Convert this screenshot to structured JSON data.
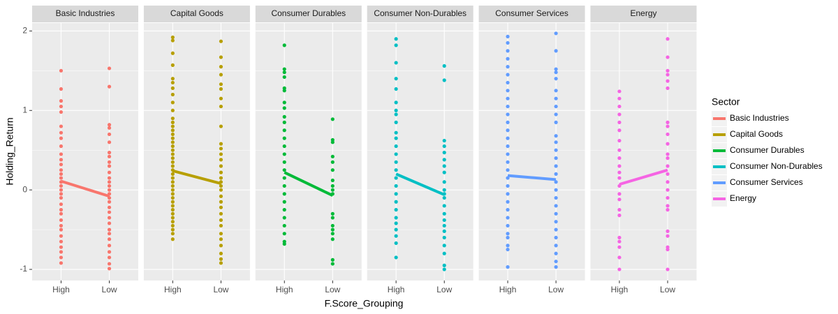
{
  "chart_data": {
    "type": "faceted_dot_line",
    "x_label": "F.Score_Grouping",
    "y_label": "Holding_Return",
    "legend_title": "Sector",
    "categories": [
      "High",
      "Low"
    ],
    "ylim": [
      -1.14,
      2.1
    ],
    "yticks": [
      -1,
      0,
      1,
      2
    ],
    "grid": true,
    "series": [
      {
        "name": "Basic Industries",
        "color": "#F8766D",
        "values": [
          0.11,
          -0.08
        ],
        "points": [
          [
            1.5,
            1.27,
            1.12,
            1.05,
            0.98,
            0.8,
            0.72,
            0.65,
            0.55,
            0.45,
            0.38,
            0.32,
            0.25,
            0.2,
            0.15,
            0.1,
            0.05,
            0,
            -0.05,
            -0.1,
            -0.18,
            -0.25,
            -0.3,
            -0.38,
            -0.45,
            -0.5,
            -0.58,
            -0.65,
            -0.72,
            -0.78,
            -0.85,
            -0.92
          ],
          [
            1.53,
            1.3,
            0.82,
            0.78,
            0.7,
            0.6,
            0.47,
            0.42,
            0.35,
            0.3,
            0.22,
            0.15,
            0.1,
            0.05,
            0,
            -0.05,
            -0.1,
            -0.15,
            -0.22,
            -0.28,
            -0.35,
            -0.42,
            -0.5,
            -0.55,
            -0.62,
            -0.7,
            -0.78,
            -0.85,
            -0.93,
            -0.99
          ]
        ]
      },
      {
        "name": "Capital Goods",
        "color": "#B79F00",
        "values": [
          0.24,
          0.08
        ],
        "points": [
          [
            1.92,
            1.88,
            1.72,
            1.57,
            1.4,
            1.35,
            1.28,
            1.2,
            1.1,
            1.0,
            0.9,
            0.85,
            0.8,
            0.75,
            0.7,
            0.65,
            0.6,
            0.55,
            0.5,
            0.45,
            0.4,
            0.35,
            0.3,
            0.25,
            0.2,
            0.15,
            0.1,
            0.05,
            0,
            -0.05,
            -0.1,
            -0.15,
            -0.2,
            -0.25,
            -0.3,
            -0.35,
            -0.4,
            -0.45,
            -0.5,
            -0.55,
            -0.62
          ],
          [
            1.87,
            1.67,
            1.55,
            1.45,
            1.33,
            1.27,
            1.15,
            1.05,
            0.8,
            0.58,
            0.52,
            0.45,
            0.38,
            0.3,
            0.22,
            0.15,
            0.1,
            0.05,
            0,
            -0.08,
            -0.15,
            -0.22,
            -0.3,
            -0.38,
            -0.45,
            -0.55,
            -0.62,
            -0.7,
            -0.8,
            -0.87,
            -0.92
          ]
        ]
      },
      {
        "name": "Consumer Durables",
        "color": "#00BA38",
        "values": [
          0.22,
          -0.07
        ],
        "points": [
          [
            1.82,
            1.52,
            1.48,
            1.42,
            1.28,
            1.25,
            1.1,
            1.03,
            0.92,
            0.85,
            0.75,
            0.65,
            0.55,
            0.45,
            0.35,
            0.25,
            0.15,
            0.05,
            -0.05,
            -0.15,
            -0.25,
            -0.35,
            -0.45,
            -0.55,
            -0.65,
            -0.68
          ],
          [
            0.89,
            0.63,
            0.6,
            0.42,
            0.35,
            0.25,
            0.12,
            0.05,
            0,
            -0.05,
            -0.3,
            -0.35,
            -0.45,
            -0.5,
            -0.55,
            -0.62,
            -0.88,
            -0.93
          ]
        ]
      },
      {
        "name": "Consumer Non-Durables",
        "color": "#00BFC4",
        "values": [
          0.2,
          -0.06
        ],
        "points": [
          [
            1.9,
            1.82,
            1.6,
            1.4,
            1.27,
            1.1,
            1.0,
            0.95,
            0.85,
            0.72,
            0.65,
            0.55,
            0.45,
            0.35,
            0.25,
            0.15,
            0.05,
            -0.05,
            -0.15,
            -0.25,
            -0.35,
            -0.42,
            -0.5,
            -0.58,
            -0.67,
            -0.85
          ],
          [
            1.56,
            1.38,
            0.62,
            0.55,
            0.47,
            0.38,
            0.3,
            0.22,
            0.1,
            0,
            -0.05,
            -0.1,
            -0.2,
            -0.3,
            -0.38,
            -0.45,
            -0.52,
            -0.6,
            -0.7,
            -0.8,
            -0.95,
            -1.0
          ]
        ]
      },
      {
        "name": "Consumer Services",
        "color": "#619CFF",
        "values": [
          0.18,
          0.13
        ],
        "points": [
          [
            1.93,
            1.85,
            1.75,
            1.65,
            1.55,
            1.45,
            1.35,
            1.25,
            1.15,
            1.05,
            0.95,
            0.85,
            0.75,
            0.65,
            0.55,
            0.45,
            0.35,
            0.25,
            0.15,
            0.05,
            -0.05,
            -0.15,
            -0.25,
            -0.35,
            -0.45,
            -0.55,
            -0.6,
            -0.7,
            -0.75,
            -0.97
          ],
          [
            1.97,
            1.75,
            1.52,
            1.48,
            1.4,
            1.25,
            1.15,
            1.05,
            0.95,
            0.85,
            0.68,
            0.6,
            0.5,
            0.4,
            0.3,
            0.2,
            0.1,
            0,
            -0.1,
            -0.2,
            -0.3,
            -0.4,
            -0.5,
            -0.6,
            -0.7,
            -0.8,
            -0.9,
            -0.97
          ]
        ]
      },
      {
        "name": "Energy",
        "color": "#F564E3",
        "values": [
          0.07,
          0.25
        ],
        "points": [
          [
            1.24,
            1.15,
            1.05,
            0.95,
            0.85,
            0.75,
            0.62,
            0.5,
            0.4,
            0.3,
            0.22,
            0.15,
            0.05,
            -0.05,
            -0.12,
            -0.25,
            -0.32,
            -0.6,
            -0.65,
            -0.72,
            -0.85,
            -1.0
          ],
          [
            1.9,
            1.67,
            1.5,
            1.45,
            1.37,
            1.28,
            0.85,
            0.8,
            0.7,
            0.58,
            0.45,
            0.4,
            0.3,
            0.2,
            0.1,
            0,
            -0.1,
            -0.2,
            -0.25,
            -0.52,
            -0.58,
            -0.72,
            -0.75,
            -1.0
          ]
        ]
      }
    ]
  }
}
